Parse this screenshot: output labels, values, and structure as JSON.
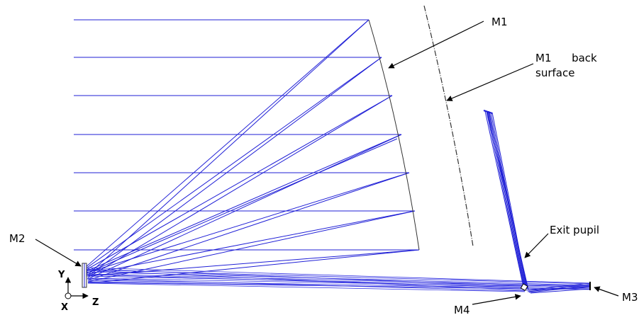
{
  "labels": {
    "m1": "M1",
    "m1_back": "M1      back",
    "m1_back_2": "surface",
    "m2": "M2",
    "m3": "M3",
    "m4": "M4",
    "exit_pupil": "Exit pupil"
  },
  "axes": {
    "y": "Y",
    "x": "X",
    "z": "Z"
  },
  "colors": {
    "ray": "#1f1fd6",
    "mirror": "#333333",
    "text": "#000000"
  }
}
